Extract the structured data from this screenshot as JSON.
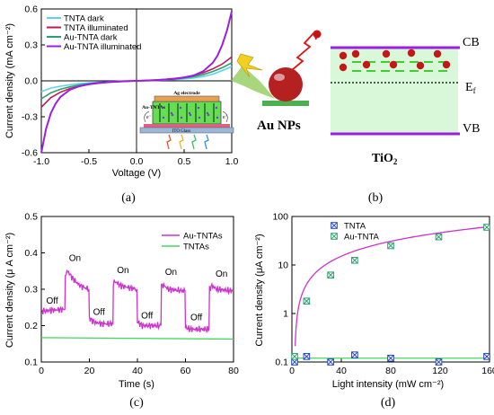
{
  "colors": {
    "cyan": "#5fd3ee",
    "crimson": "#c2185b",
    "teal": "#2e9e6e",
    "violet": "#9b1fe0",
    "magenta": "#cc33cc",
    "green": "#44d65f",
    "blue": "#2244cc",
    "tio2": "#d9f7d9",
    "gold_np": "#b52020",
    "lightning": "#f0d020"
  },
  "panels": {
    "a": {
      "label": "(a)"
    },
    "b": {
      "label": "(b)"
    },
    "c": {
      "label": "(c)"
    },
    "d": {
      "label": "(d)"
    }
  },
  "inset_a": {
    "electrode": "Ag electrode",
    "film": "Au-TNTAs",
    "substrate": "ITO Glass",
    "electron": "e⁻"
  },
  "diagram_b": {
    "cb": "CB",
    "vb": "VB",
    "ef": "E",
    "ef_sub": "f",
    "np": "Au NPs",
    "tio2": "TiO",
    "tio2_sub": "2"
  },
  "annotations_c": [
    "Off",
    "On",
    "Off",
    "On",
    "Off",
    "On",
    "Off",
    "On",
    "Off",
    "On"
  ],
  "chart_data": [
    {
      "id": "a",
      "type": "line",
      "xlabel": "Voltage (V)",
      "ylabel": "Current density (mA cm⁻²)",
      "xlim": [
        -1.0,
        1.0
      ],
      "ylim": [
        -0.6,
        0.6
      ],
      "xticks": [
        -1.0,
        -0.5,
        0.0,
        0.5,
        1.0
      ],
      "xtick_labels": [
        "-1.0",
        "-0.5",
        "0.0",
        "0.5",
        "1.0"
      ],
      "yticks": [
        -0.6,
        -0.3,
        0.0,
        0.3,
        0.6
      ],
      "ytick_labels": [
        "-0.6",
        "-0.3",
        "0.0",
        "0.3",
        "0.6"
      ],
      "legend_position": "top-left",
      "series": [
        {
          "name": "TNTA dark",
          "color": "cyan",
          "x": [
            -1.0,
            -0.9,
            -0.8,
            -0.7,
            -0.6,
            -0.5,
            -0.4,
            -0.3,
            -0.2,
            -0.1,
            0.0,
            0.1,
            0.2,
            0.3,
            0.4,
            0.5,
            0.6,
            0.7,
            0.8,
            0.9,
            1.0
          ],
          "y": [
            -0.09,
            -0.06,
            -0.045,
            -0.033,
            -0.024,
            -0.017,
            -0.012,
            -0.008,
            -0.005,
            -0.002,
            0.0,
            0.002,
            0.004,
            0.007,
            0.011,
            0.016,
            0.024,
            0.036,
            0.055,
            0.085,
            0.12
          ]
        },
        {
          "name": "TNTA illuminated",
          "color": "crimson",
          "x": [
            -1.0,
            -0.9,
            -0.8,
            -0.7,
            -0.6,
            -0.5,
            -0.4,
            -0.3,
            -0.2,
            -0.1,
            0.0,
            0.1,
            0.2,
            0.3,
            0.4,
            0.5,
            0.6,
            0.7,
            0.8,
            0.9,
            1.0
          ],
          "y": [
            -0.22,
            -0.14,
            -0.095,
            -0.065,
            -0.045,
            -0.03,
            -0.02,
            -0.013,
            -0.008,
            -0.004,
            0.0,
            0.004,
            0.008,
            0.013,
            0.02,
            0.03,
            0.045,
            0.068,
            0.1,
            0.14,
            0.2
          ]
        },
        {
          "name": "Au-TNTA dark",
          "color": "teal",
          "x": [
            -1.0,
            -0.9,
            -0.8,
            -0.7,
            -0.6,
            -0.5,
            -0.4,
            -0.3,
            -0.2,
            -0.1,
            0.0,
            0.1,
            0.2,
            0.3,
            0.4,
            0.5,
            0.6,
            0.7,
            0.8,
            0.9,
            1.0
          ],
          "y": [
            -0.15,
            -0.1,
            -0.07,
            -0.05,
            -0.035,
            -0.024,
            -0.016,
            -0.01,
            -0.006,
            -0.003,
            0.0,
            0.003,
            0.006,
            0.01,
            0.016,
            0.024,
            0.035,
            0.052,
            0.078,
            0.11,
            0.15
          ]
        },
        {
          "name": "Au-TNTA illuminated",
          "color": "violet",
          "x": [
            -1.0,
            -0.95,
            -0.9,
            -0.85,
            -0.8,
            -0.7,
            -0.6,
            -0.5,
            -0.4,
            -0.3,
            -0.2,
            -0.1,
            0.0,
            0.1,
            0.2,
            0.3,
            0.4,
            0.5,
            0.6,
            0.7,
            0.8,
            0.85,
            0.9,
            0.95,
            1.0
          ],
          "y": [
            -0.6,
            -0.4,
            -0.27,
            -0.19,
            -0.135,
            -0.075,
            -0.045,
            -0.028,
            -0.017,
            -0.01,
            -0.005,
            -0.002,
            0.0,
            0.002,
            0.005,
            0.01,
            0.017,
            0.028,
            0.045,
            0.08,
            0.15,
            0.21,
            0.3,
            0.42,
            0.58
          ]
        }
      ]
    },
    {
      "id": "c",
      "type": "line",
      "xlabel": "Time (s)",
      "ylabel": "Current density (μ A cm⁻²)",
      "xlim": [
        0,
        80
      ],
      "ylim": [
        0.1,
        0.5
      ],
      "xticks": [
        0,
        20,
        40,
        60,
        80
      ],
      "xtick_labels": [
        "0",
        "20",
        "40",
        "60",
        "80"
      ],
      "yticks": [
        0.1,
        0.2,
        0.3,
        0.4,
        0.5
      ],
      "ytick_labels": [
        "0.1",
        "0.2",
        "0.3",
        "0.4",
        "0.5"
      ],
      "legend_position": "top-right",
      "series": [
        {
          "name": "Au-TNTAs",
          "color": "magenta",
          "x": [
            0,
            9.8,
            10,
            11,
            13,
            16,
            19.8,
            20,
            22,
            25,
            29.8,
            30,
            31,
            33,
            36,
            39.8,
            40,
            42,
            45,
            49.8,
            50,
            51,
            53,
            56,
            59.8,
            60,
            62,
            65,
            69.8,
            70,
            71,
            73,
            76,
            80
          ],
          "y": [
            0.24,
            0.245,
            0.34,
            0.35,
            0.33,
            0.31,
            0.3,
            0.22,
            0.21,
            0.205,
            0.205,
            0.32,
            0.32,
            0.31,
            0.305,
            0.3,
            0.21,
            0.2,
            0.2,
            0.2,
            0.31,
            0.31,
            0.3,
            0.298,
            0.295,
            0.195,
            0.19,
            0.19,
            0.19,
            0.3,
            0.31,
            0.3,
            0.298,
            0.295
          ]
        },
        {
          "name": "TNTAs",
          "color": "green",
          "x": [
            0,
            80
          ],
          "y": [
            0.167,
            0.163
          ]
        }
      ]
    },
    {
      "id": "d",
      "type": "scatter",
      "xlabel": "Light intensity (mW cm⁻²)",
      "ylabel": "Current density (μA cm⁻²)",
      "xlim": [
        0,
        160
      ],
      "ylim": [
        0.1,
        100
      ],
      "yscale": "log",
      "xticks": [
        0,
        40,
        80,
        120,
        160
      ],
      "xtick_labels": [
        "0",
        "40",
        "80",
        "120",
        "160"
      ],
      "yticks": [
        0.1,
        1,
        10,
        100
      ],
      "ytick_labels": [
        "0.1",
        "1",
        "10",
        "100"
      ],
      "legend_position": "top-left",
      "series": [
        {
          "name": "TNTA",
          "color": "blue",
          "marker": "x-square",
          "x": [
            0,
            10,
            30,
            50,
            80,
            120,
            160
          ],
          "y": [
            0.1,
            0.13,
            0.1,
            0.14,
            0.12,
            0.1,
            0.13
          ],
          "fit_y": 0.12
        },
        {
          "name": "Au-TNTA",
          "color": "teal",
          "marker": "x-square",
          "x": [
            0,
            10,
            30,
            50,
            80,
            120,
            160
          ],
          "y": [
            0.13,
            1.8,
            6.2,
            12.5,
            25,
            38,
            60
          ],
          "fit": "power"
        }
      ]
    }
  ]
}
